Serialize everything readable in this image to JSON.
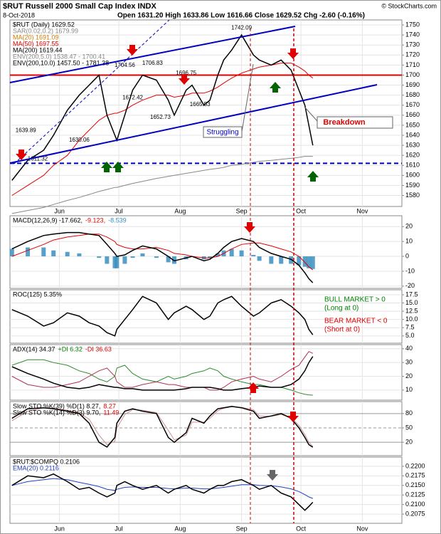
{
  "chart_data": {
    "type": "line",
    "title": "$RUT Russell 2000 Small Cap Index INDX",
    "date": "8-Oct-2018",
    "quote": "Open 1631.20 High 1633.86 Low 1616.66 Close 1629.52 Chg -2.60 (-0.16%)",
    "source": "© StockCharts.com",
    "callouts": {
      "struggling": "Struggling",
      "breakdown": "Breakdown"
    },
    "x": [
      128,
      136,
      144,
      149,
      156,
      162,
      167,
      172,
      176,
      180,
      181,
      185,
      189,
      194,
      201,
      207,
      210,
      216,
      219,
      225,
      228,
      232,
      235,
      239,
      244,
      250,
      253,
      259,
      264,
      269,
      273,
      276,
      278,
      280
    ],
    "xlim": [
      127,
      325
    ],
    "xticks": [
      {
        "value": 152,
        "label": "Jun"
      },
      {
        "value": 182,
        "label": "Jul"
      },
      {
        "value": 213,
        "label": "Aug"
      },
      {
        "value": 244,
        "label": "Sep"
      },
      {
        "value": 274,
        "label": "Oct"
      },
      {
        "value": 305,
        "label": "Nov"
      }
    ],
    "grid": true,
    "panels": [
      {
        "ylim": [
          1569,
          1755
        ],
        "yticks": [
          1580,
          1590,
          1600,
          1610,
          1620,
          1630,
          1640,
          1650,
          1660,
          1670,
          1680,
          1690,
          1700,
          1710,
          1720,
          1730,
          1740,
          1750
        ],
        "legend": [
          [
            {
              "text": "$RUT (Daily) 1629.52",
              "color": "#000000"
            }
          ],
          [
            {
              "text": "SAR(0.02,0.2) 1679.99",
              "color": "#888888"
            }
          ],
          [
            {
              "text": "MA(20) 1691.09",
              "color": "#d08000"
            }
          ],
          [
            {
              "text": "MA(50) 1697.55",
              "color": "#e00000"
            }
          ],
          [
            {
              "text": "MA(200) 1619.44",
              "color": "#000000"
            }
          ],
          [
            {
              "text": "ENV(200,5.0) 1538.47 - 1700.41",
              "color": "#888888"
            }
          ],
          [
            {
              "text": "ENV(200,10.0) 1457.50 - 1781.38",
              "color": "#000000"
            }
          ]
        ],
        "hlines": [
          {
            "value": 1700,
            "color": "#e00000",
            "dash": false
          },
          {
            "value": 1612,
            "color": "#0000b0",
            "dash": true
          }
        ],
        "price_labels": [
          {
            "x": 244,
            "value": 1742.09
          },
          {
            "x": 185,
            "value": 1704.56
          },
          {
            "x": 199,
            "value": 1706.83
          },
          {
            "x": 216,
            "value": 1696.75
          },
          {
            "x": 189,
            "value": 1672.42
          },
          {
            "x": 203,
            "value": 1652.73
          },
          {
            "x": 223,
            "value": 1665.53
          },
          {
            "x": 135,
            "value": 1639.89
          },
          {
            "x": 162,
            "value": 1630.06
          },
          {
            "x": 141,
            "value": 1611.32
          }
        ],
        "series": [
          {
            "kind": "line",
            "color": "#888888",
            "values": [
              1562,
              1565,
              1568,
              1571,
              1575,
              1578,
              1581,
              1584,
              1586,
              1588,
              1588,
              1590,
              1592,
              1594,
              1597,
              1599,
              1600,
              1602,
              1603,
              1605,
              1606,
              1607,
              1608,
              1610,
              1611,
              1613,
              1614,
              1615,
              1616,
              1617,
              1618,
              1619,
              1619,
              1619
            ]
          },
          {
            "kind": "line",
            "color": "#e00000",
            "values": [
              1580,
              1590,
              1600,
              1610,
              1620,
              1635,
              1645,
              1655,
              1660,
              1662,
              1662,
              1665,
              1670,
              1675,
              1680,
              1680,
              1678,
              1680,
              1682,
              1682,
              1684,
              1688,
              1692,
              1697,
              1702,
              1706,
              1708,
              1710,
              1712,
              1712,
              1708,
              1704,
              1700,
              1697
            ]
          },
          {
            "kind": "line",
            "color": "#000000",
            "values": [
              1595,
              1615,
              1625,
              1640,
              1665,
              1680,
              1690,
              1700,
              1660,
              1640,
              1635,
              1660,
              1685,
              1700,
              1695,
              1675,
              1660,
              1685,
              1690,
              1670,
              1675,
              1700,
              1715,
              1725,
              1740,
              1720,
              1715,
              1710,
              1715,
              1705,
              1685,
              1670,
              1650,
              1630
            ]
          }
        ]
      },
      {
        "ylim": [
          -21.5,
          27.3
        ],
        "yticks": [
          -20,
          -10,
          0,
          10,
          20
        ],
        "legend": [
          [
            {
              "text": "MACD(12,26,9) -17.662,",
              "color": "#000000"
            },
            {
              "text": "-9.123,",
              "color": "#e00000"
            },
            {
              "text": "-8.539",
              "color": "#3a8fc0"
            }
          ]
        ],
        "series": [
          {
            "kind": "bar",
            "color": "#3a8fc0",
            "values": [
              5,
              6,
              6,
              4,
              3,
              2,
              0,
              -1,
              -5,
              -8,
              -8,
              -5,
              -1,
              2,
              -1,
              -4,
              -5,
              -2,
              0,
              -2,
              -1,
              2,
              4,
              5,
              4,
              1,
              -3,
              -5,
              -5,
              -5,
              -6,
              -7,
              -8,
              -8.5
            ]
          },
          {
            "kind": "line",
            "color": "#e00000",
            "values": [
              0,
              4,
              8,
              11,
              13,
              14,
              15,
              15,
              13,
              10,
              8,
              6,
              5,
              5,
              6,
              4,
              2,
              1,
              0,
              -1,
              -1,
              0,
              2,
              5,
              8,
              9,
              9,
              7,
              5,
              3,
              0,
              -4,
              -7,
              -9.1
            ]
          },
          {
            "kind": "line",
            "color": "#000000",
            "values": [
              5,
              10,
              14,
              15,
              16,
              16,
              15,
              14,
              8,
              2,
              0,
              1,
              4,
              7,
              5,
              0,
              -3,
              -1,
              0,
              -3,
              -2,
              2,
              6,
              10,
              12,
              10,
              6,
              2,
              0,
              -2,
              -6,
              -11,
              -15,
              -17.7
            ]
          }
        ]
      },
      {
        "ylim": [
          2.8,
          19
        ],
        "yticks": [
          {
            "value": 5,
            "label": "5.0"
          },
          {
            "value": 7.5,
            "label": "7.5"
          },
          {
            "value": 10,
            "label": "10.0"
          },
          {
            "value": 12.5,
            "label": "12.5"
          },
          {
            "value": 15,
            "label": "15.0"
          },
          {
            "value": 17.5,
            "label": "17.5"
          }
        ],
        "legend": [
          [
            {
              "text": "ROC(125) 5.35%",
              "color": "#000000"
            }
          ]
        ],
        "notes": [
          {
            "text": "BULL MARKET > 0",
            "color": "#008000"
          },
          {
            "text": "(Long at 0)",
            "color": "#008000"
          },
          {
            "text": "BEAR MARKET < 0",
            "color": "#e00000"
          },
          {
            "text": "(Short at 0)",
            "color": "#e00000"
          }
        ],
        "series": [
          {
            "kind": "line",
            "color": "#000000",
            "values": [
              13,
              11,
              8,
              9,
              12,
              11,
              9,
              8,
              6,
              5,
              7,
              10,
              13,
              17,
              15,
              10,
              12,
              14,
              13,
              10,
              11,
              15,
              16,
              17,
              14,
              11,
              12,
              15,
              16,
              14,
              12,
              10,
              7,
              5.35
            ]
          }
        ]
      },
      {
        "ylim": [
          2.7,
          43
        ],
        "yticks": [
          10,
          20,
          30,
          40
        ],
        "legend": [
          [
            {
              "text": "ADX(14) 34.37",
              "color": "#000000"
            },
            {
              "text": "+DI 6.32",
              "color": "#008000"
            },
            {
              "text": "-DI 36.63",
              "color": "#e00000"
            }
          ]
        ],
        "series": [
          {
            "kind": "line",
            "color": "#2e8b2e",
            "values": [
              28,
              32,
              32,
              30,
              28,
              24,
              22,
              18,
              16,
              20,
              26,
              28,
              22,
              18,
              16,
              20,
              18,
              20,
              22,
              24,
              26,
              24,
              20,
              18,
              16,
              14,
              14,
              12,
              12,
              10,
              8,
              7,
              6.5,
              6.32
            ]
          },
          {
            "kind": "line",
            "color": "#b03050",
            "values": [
              20,
              14,
              12,
              12,
              14,
              16,
              20,
              24,
              26,
              20,
              16,
              12,
              12,
              14,
              16,
              14,
              14,
              12,
              12,
              12,
              10,
              10,
              12,
              16,
              18,
              20,
              18,
              16,
              20,
              25,
              28,
              34,
              38,
              36.63
            ]
          },
          {
            "kind": "line",
            "color": "#000000",
            "values": [
              27,
              22,
              18,
              15,
              12,
              11,
              12,
              14,
              13,
              12,
              12,
              11,
              11,
              10,
              10,
              10,
              10,
              11,
              12,
              12,
              12,
              11,
              10,
              10,
              11,
              12,
              13,
              12,
              12,
              14,
              18,
              24,
              30,
              34.37
            ]
          }
        ]
      },
      {
        "ylim": [
          -8,
          105
        ],
        "yticks": [
          20,
          50,
          80
        ],
        "legend": [
          [
            {
              "text": "Slow STO %K(39) %D(1) 8.27,",
              "color": "#000000"
            },
            {
              "text": "8.27",
              "color": "#e00000"
            }
          ],
          [
            {
              "text": "Slow STO %K(14) %D(3) 9.70,",
              "color": "#000000"
            },
            {
              "text": "11.49",
              "color": "#e00000"
            }
          ]
        ],
        "series": [
          {
            "kind": "line",
            "color": "#d09090",
            "values": [
              65,
              85,
              92,
              91,
              87,
              82,
              68,
              35,
              15,
              22,
              50,
              78,
              88,
              87,
              82,
              45,
              25,
              35,
              62,
              62,
              70,
              86,
              91,
              94,
              93,
              88,
              75,
              74,
              78,
              72,
              55,
              36,
              20,
              11.49
            ]
          },
          {
            "kind": "line",
            "color": "#000000",
            "values": [
              70,
              90,
              92,
              90,
              85,
              80,
              60,
              20,
              10,
              30,
              60,
              85,
              90,
              85,
              80,
              30,
              20,
              40,
              70,
              60,
              75,
              90,
              92,
              95,
              92,
              85,
              70,
              75,
              80,
              70,
              50,
              30,
              15,
              9.7
            ]
          }
        ]
      },
      {
        "ylim": [
          0.2051,
          0.2224
        ],
        "yticks": [
          {
            "value": 0.2075,
            "label": "0.2075"
          },
          {
            "value": 0.21,
            "label": "0.2100"
          },
          {
            "value": 0.2125,
            "label": "0.2125"
          },
          {
            "value": 0.215,
            "label": "0.2150"
          },
          {
            "value": 0.2175,
            "label": "0.2175"
          },
          {
            "value": 0.22,
            "label": "0.2200"
          }
        ],
        "legend": [
          [
            {
              "text": "$RUT:$COMPQ 0.2106",
              "color": "#000000"
            }
          ],
          [
            {
              "text": "EMA(20) 0.2116",
              "color": "#1f3fbf"
            }
          ]
        ],
        "series": [
          {
            "kind": "line",
            "color": "#1f3fbf",
            "values": [
              0.215,
              0.216,
              0.2165,
              0.2168,
              0.2165,
              0.2158,
              0.2153,
              0.2147,
              0.214,
              0.2137,
              0.214,
              0.2145,
              0.2146,
              0.2145,
              0.2145,
              0.2142,
              0.2141,
              0.2143,
              0.2143,
              0.2141,
              0.2141,
              0.2143,
              0.2145,
              0.2148,
              0.2152,
              0.2152,
              0.215,
              0.2149,
              0.2146,
              0.2141,
              0.2134,
              0.2126,
              0.212,
              0.2116
            ]
          },
          {
            "kind": "line",
            "color": "#000000",
            "values": [
              0.215,
              0.2175,
              0.217,
              0.218,
              0.216,
              0.214,
              0.2145,
              0.213,
              0.212,
              0.213,
              0.215,
              0.216,
              0.215,
              0.214,
              0.215,
              0.213,
              0.214,
              0.215,
              0.214,
              0.213,
              0.214,
              0.215,
              0.215,
              0.216,
              0.2165,
              0.215,
              0.214,
              0.215,
              0.213,
              0.212,
              0.21,
              0.2085,
              0.2095,
              0.2106
            ]
          }
        ]
      }
    ]
  }
}
